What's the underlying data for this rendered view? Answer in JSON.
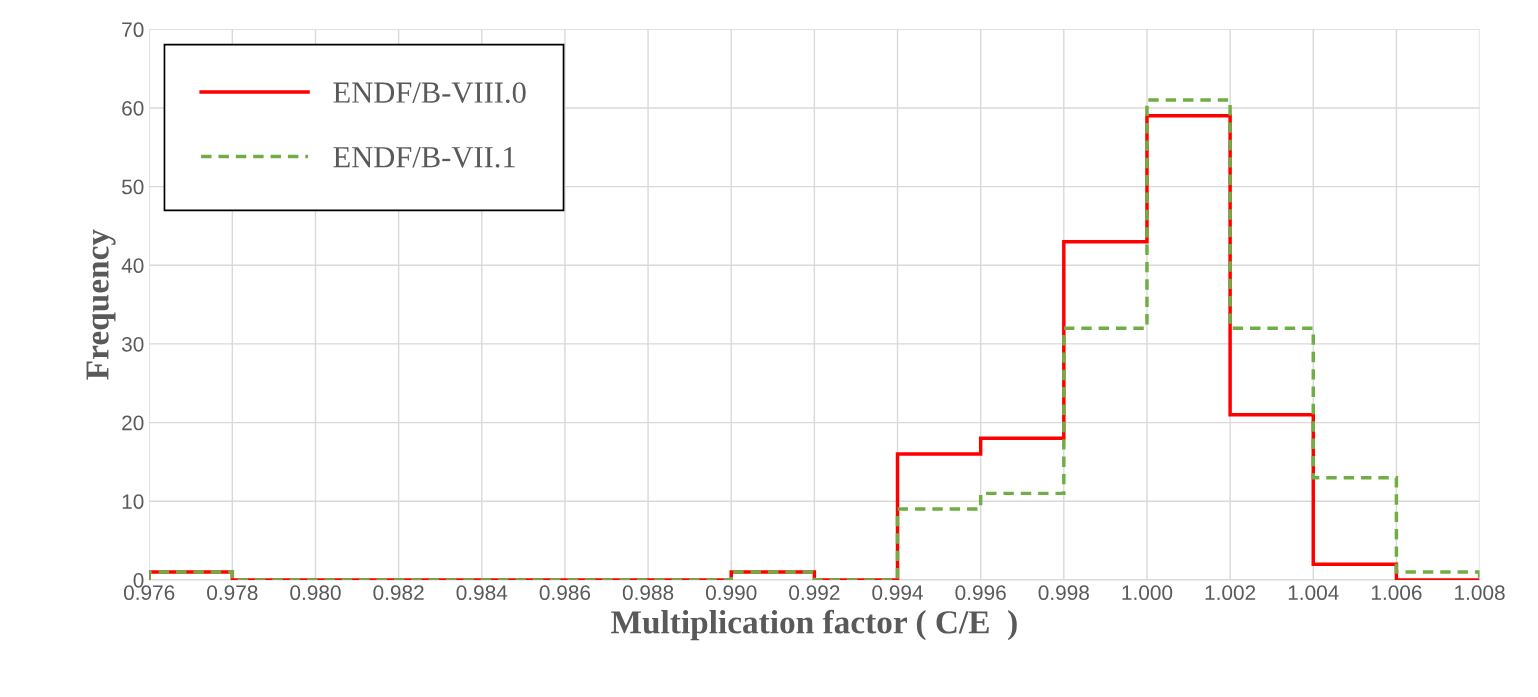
{
  "chart_data": {
    "type": "histogram",
    "xlabel": "Multiplication factor ( C/E  )",
    "ylabel": "Frequency",
    "bins": [
      0.976,
      0.978,
      0.98,
      0.982,
      0.984,
      0.986,
      0.988,
      0.99,
      0.992,
      0.994,
      0.996,
      0.998,
      1.0,
      1.002,
      1.004,
      1.006,
      1.008
    ],
    "series": [
      {
        "name": "ENDF/B-VIII.0",
        "color": "#ff0000",
        "line_style": "solid",
        "values": [
          1,
          0,
          0,
          0,
          0,
          0,
          0,
          1,
          0,
          16,
          18,
          43,
          59,
          21,
          2,
          0
        ]
      },
      {
        "name": "ENDF/B-VII.1",
        "color": "#70ad47",
        "line_style": "dashed",
        "values": [
          1,
          0,
          0,
          0,
          0,
          0,
          0,
          1,
          0,
          9,
          11,
          32,
          61,
          32,
          13,
          1
        ]
      }
    ],
    "xlim": [
      0.976,
      1.008
    ],
    "xticks": [
      0.976,
      0.978,
      {
        "value": 0.98,
        "label": "0.980"
      },
      0.982,
      0.984,
      0.986,
      0.988,
      {
        "value": 0.99,
        "label": "0.990"
      },
      0.992,
      0.994,
      0.996,
      0.998,
      {
        "value": 1.0,
        "label": "1.000"
      },
      1.002,
      1.004,
      1.006,
      1.008
    ],
    "ylim": [
      0,
      70
    ],
    "yticks": [
      0,
      10,
      20,
      30,
      40,
      50,
      60,
      70
    ],
    "grid": true,
    "legend": "top left"
  }
}
